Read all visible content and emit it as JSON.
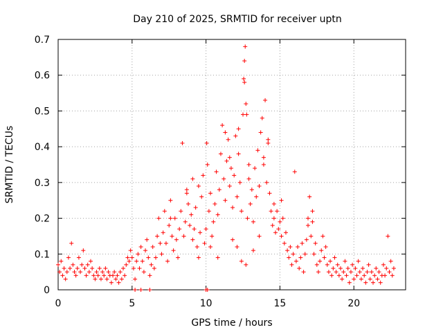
{
  "chart_data": {
    "type": "scatter",
    "title": "Day 210 of 2025, SRMTID for receiver uptn",
    "xlabel": "GPS time / hours",
    "ylabel": "SRMTID / TECUs",
    "xlim": [
      0,
      23.5
    ],
    "ylim": [
      0,
      0.7
    ],
    "x_ticks": [
      0,
      5,
      10,
      15,
      20
    ],
    "x_tick_labels": [
      "0",
      "5",
      "10",
      "15",
      "20"
    ],
    "y_ticks": [
      0,
      0.1,
      0.2,
      0.3,
      0.4,
      0.5,
      0.6,
      0.7
    ],
    "y_tick_labels": [
      "0",
      "0.1",
      "0.2",
      "0.3",
      "0.4",
      "0.5",
      "0.6",
      "0.7"
    ],
    "grid": true,
    "marker": "plus",
    "color": "#ff0000",
    "series": [
      {
        "name": "SRMTID",
        "points": [
          [
            0.0,
            0.07
          ],
          [
            0.1,
            0.05
          ],
          [
            0.2,
            0.08
          ],
          [
            0.3,
            0.04
          ],
          [
            0.4,
            0.06
          ],
          [
            0.5,
            0.03
          ],
          [
            0.6,
            0.05
          ],
          [
            0.7,
            0.09
          ],
          [
            0.8,
            0.06
          ],
          [
            0.9,
            0.13
          ],
          [
            1.0,
            0.07
          ],
          [
            1.1,
            0.05
          ],
          [
            1.2,
            0.04
          ],
          [
            1.3,
            0.06
          ],
          [
            1.4,
            0.09
          ],
          [
            1.5,
            0.05
          ],
          [
            1.6,
            0.07
          ],
          [
            1.7,
            0.11
          ],
          [
            1.8,
            0.06
          ],
          [
            1.9,
            0.04
          ],
          [
            2.0,
            0.07
          ],
          [
            2.1,
            0.05
          ],
          [
            2.2,
            0.08
          ],
          [
            2.3,
            0.06
          ],
          [
            2.4,
            0.04
          ],
          [
            2.5,
            0.03
          ],
          [
            2.6,
            0.05
          ],
          [
            2.7,
            0.04
          ],
          [
            2.8,
            0.06
          ],
          [
            2.9,
            0.03
          ],
          [
            3.0,
            0.05
          ],
          [
            3.1,
            0.04
          ],
          [
            3.2,
            0.06
          ],
          [
            3.3,
            0.03
          ],
          [
            3.4,
            0.05
          ],
          [
            3.5,
            0.04
          ],
          [
            3.6,
            0.02
          ],
          [
            3.7,
            0.04
          ],
          [
            3.8,
            0.05
          ],
          [
            3.9,
            0.03
          ],
          [
            4.0,
            0.04
          ],
          [
            4.1,
            0.02
          ],
          [
            4.2,
            0.05
          ],
          [
            4.3,
            0.03
          ],
          [
            4.4,
            0.06
          ],
          [
            4.5,
            0.04
          ],
          [
            4.6,
            0.07
          ],
          [
            4.7,
            0.09
          ],
          [
            4.8,
            0.08
          ],
          [
            4.9,
            0.11
          ],
          [
            5.0,
            0.09
          ],
          [
            5.1,
            0.06
          ],
          [
            5.2,
            0.03
          ],
          [
            5.3,
            0.08
          ],
          [
            5.4,
            0.1
          ],
          [
            5.5,
            0.06
          ],
          [
            5.6,
            0.12
          ],
          [
            5.7,
            0.08
          ],
          [
            5.8,
            0.05
          ],
          [
            5.9,
            0.11
          ],
          [
            6.0,
            0.14
          ],
          [
            6.1,
            0.09
          ],
          [
            6.2,
            0.04
          ],
          [
            6.3,
            0.07
          ],
          [
            6.4,
            0.12
          ],
          [
            6.5,
            0.06
          ],
          [
            6.6,
            0.09
          ],
          [
            6.7,
            0.15
          ],
          [
            6.8,
            0.2
          ],
          [
            6.9,
            0.13
          ],
          [
            7.0,
            0.1
          ],
          [
            7.1,
            0.16
          ],
          [
            7.2,
            0.22
          ],
          [
            7.3,
            0.13
          ],
          [
            7.4,
            0.08
          ],
          [
            7.5,
            0.18
          ],
          [
            7.6,
            0.25
          ],
          [
            7.7,
            0.15
          ],
          [
            7.8,
            0.11
          ],
          [
            7.9,
            0.2
          ],
          [
            8.0,
            0.14
          ],
          [
            8.1,
            0.09
          ],
          [
            8.2,
            0.17
          ],
          [
            8.3,
            0.22
          ],
          [
            8.4,
            0.41
          ],
          [
            8.5,
            0.15
          ],
          [
            8.6,
            0.19
          ],
          [
            8.7,
            0.27
          ],
          [
            8.8,
            0.24
          ],
          [
            8.9,
            0.18
          ],
          [
            9.0,
            0.21
          ],
          [
            9.1,
            0.14
          ],
          [
            9.2,
            0.17
          ],
          [
            9.3,
            0.23
          ],
          [
            9.4,
            0.12
          ],
          [
            9.5,
            0.09
          ],
          [
            9.6,
            0.16
          ],
          [
            9.7,
            0.26
          ],
          [
            9.8,
            0.32
          ],
          [
            9.9,
            0.13
          ],
          [
            10.0,
            0.17
          ],
          [
            10.05,
            0.41
          ],
          [
            10.1,
            0.35
          ],
          [
            10.2,
            0.22
          ],
          [
            10.3,
            0.27
          ],
          [
            10.4,
            0.15
          ],
          [
            10.5,
            0.19
          ],
          [
            10.6,
            0.24
          ],
          [
            10.7,
            0.33
          ],
          [
            10.8,
            0.21
          ],
          [
            10.9,
            0.28
          ],
          [
            11.0,
            0.38
          ],
          [
            11.1,
            0.46
          ],
          [
            11.2,
            0.31
          ],
          [
            11.3,
            0.25
          ],
          [
            11.4,
            0.36
          ],
          [
            11.5,
            0.42
          ],
          [
            11.6,
            0.29
          ],
          [
            11.7,
            0.34
          ],
          [
            11.8,
            0.23
          ],
          [
            11.9,
            0.32
          ],
          [
            12.0,
            0.43
          ],
          [
            12.1,
            0.26
          ],
          [
            12.2,
            0.38
          ],
          [
            12.3,
            0.3
          ],
          [
            12.4,
            0.22
          ],
          [
            12.5,
            0.49
          ],
          [
            12.55,
            0.59
          ],
          [
            12.6,
            0.64
          ],
          [
            12.65,
            0.68
          ],
          [
            12.7,
            0.52
          ],
          [
            12.8,
            0.2
          ],
          [
            12.9,
            0.31
          ],
          [
            13.0,
            0.24
          ],
          [
            13.1,
            0.28
          ],
          [
            13.2,
            0.19
          ],
          [
            13.3,
            0.34
          ],
          [
            13.4,
            0.26
          ],
          [
            13.5,
            0.39
          ],
          [
            13.6,
            0.29
          ],
          [
            13.7,
            0.44
          ],
          [
            13.8,
            0.48
          ],
          [
            13.9,
            0.35
          ],
          [
            14.0,
            0.53
          ],
          [
            14.1,
            0.3
          ],
          [
            14.2,
            0.42
          ],
          [
            14.3,
            0.27
          ],
          [
            14.4,
            0.22
          ],
          [
            14.5,
            0.18
          ],
          [
            14.6,
            0.2
          ],
          [
            14.7,
            0.16
          ],
          [
            14.8,
            0.22
          ],
          [
            14.9,
            0.17
          ],
          [
            15.0,
            0.19
          ],
          [
            15.1,
            0.15
          ],
          [
            15.2,
            0.2
          ],
          [
            15.3,
            0.13
          ],
          [
            15.4,
            0.16
          ],
          [
            15.5,
            0.11
          ],
          [
            15.6,
            0.09
          ],
          [
            15.7,
            0.12
          ],
          [
            15.8,
            0.07
          ],
          [
            15.9,
            0.1
          ],
          [
            16.0,
            0.33
          ],
          [
            16.1,
            0.08
          ],
          [
            16.2,
            0.12
          ],
          [
            16.3,
            0.06
          ],
          [
            16.4,
            0.09
          ],
          [
            16.5,
            0.13
          ],
          [
            16.6,
            0.05
          ],
          [
            16.7,
            0.1
          ],
          [
            16.8,
            0.14
          ],
          [
            16.9,
            0.18
          ],
          [
            17.0,
            0.26
          ],
          [
            17.1,
            0.15
          ],
          [
            17.2,
            0.19
          ],
          [
            17.3,
            0.1
          ],
          [
            17.4,
            0.13
          ],
          [
            17.5,
            0.07
          ],
          [
            17.6,
            0.05
          ],
          [
            17.7,
            0.08
          ],
          [
            17.8,
            0.11
          ],
          [
            17.9,
            0.15
          ],
          [
            18.0,
            0.09
          ],
          [
            18.1,
            0.12
          ],
          [
            18.2,
            0.07
          ],
          [
            18.3,
            0.05
          ],
          [
            18.4,
            0.08
          ],
          [
            18.5,
            0.04
          ],
          [
            18.6,
            0.06
          ],
          [
            18.7,
            0.09
          ],
          [
            18.8,
            0.05
          ],
          [
            18.9,
            0.07
          ],
          [
            19.0,
            0.04
          ],
          [
            19.1,
            0.06
          ],
          [
            19.2,
            0.03
          ],
          [
            19.3,
            0.05
          ],
          [
            19.4,
            0.08
          ],
          [
            19.5,
            0.04
          ],
          [
            19.6,
            0.06
          ],
          [
            19.7,
            0.02
          ],
          [
            19.8,
            0.05
          ],
          [
            19.9,
            0.07
          ],
          [
            20.0,
            0.03
          ],
          [
            20.1,
            0.06
          ],
          [
            20.2,
            0.04
          ],
          [
            20.3,
            0.08
          ],
          [
            20.4,
            0.05
          ],
          [
            20.5,
            0.03
          ],
          [
            20.6,
            0.06
          ],
          [
            20.7,
            0.04
          ],
          [
            20.8,
            0.02
          ],
          [
            20.9,
            0.05
          ],
          [
            21.0,
            0.07
          ],
          [
            21.1,
            0.03
          ],
          [
            21.2,
            0.05
          ],
          [
            21.3,
            0.02
          ],
          [
            21.4,
            0.04
          ],
          [
            21.5,
            0.06
          ],
          [
            21.6,
            0.03
          ],
          [
            21.7,
            0.05
          ],
          [
            21.8,
            0.02
          ],
          [
            21.9,
            0.04
          ],
          [
            22.0,
            0.07
          ],
          [
            22.1,
            0.04
          ],
          [
            22.2,
            0.06
          ],
          [
            22.3,
            0.15
          ],
          [
            22.4,
            0.05
          ],
          [
            22.5,
            0.08
          ],
          [
            22.6,
            0.04
          ],
          [
            22.7,
            0.06
          ],
          [
            5.2,
            0.0
          ],
          [
            5.6,
            0.0
          ],
          [
            6.2,
            0.0
          ],
          [
            10.0,
            0.0
          ],
          [
            10.1,
            0.0
          ],
          [
            12.1,
            0.12
          ],
          [
            13.2,
            0.11
          ],
          [
            12.7,
            0.07
          ],
          [
            11.8,
            0.14
          ],
          [
            9.5,
            0.29
          ],
          [
            8.7,
            0.28
          ],
          [
            13.9,
            0.37
          ],
          [
            14.2,
            0.41
          ],
          [
            11.3,
            0.44
          ],
          [
            12.2,
            0.45
          ],
          [
            11.6,
            0.37
          ],
          [
            12.6,
            0.58
          ],
          [
            12.75,
            0.49
          ],
          [
            12.9,
            0.35
          ],
          [
            14.6,
            0.24
          ],
          [
            15.1,
            0.25
          ],
          [
            16.9,
            0.2
          ],
          [
            17.2,
            0.22
          ],
          [
            7.6,
            0.2
          ],
          [
            9.1,
            0.31
          ],
          [
            10.3,
            0.12
          ],
          [
            13.6,
            0.15
          ],
          [
            10.8,
            0.09
          ],
          [
            12.4,
            0.08
          ]
        ]
      }
    ]
  }
}
